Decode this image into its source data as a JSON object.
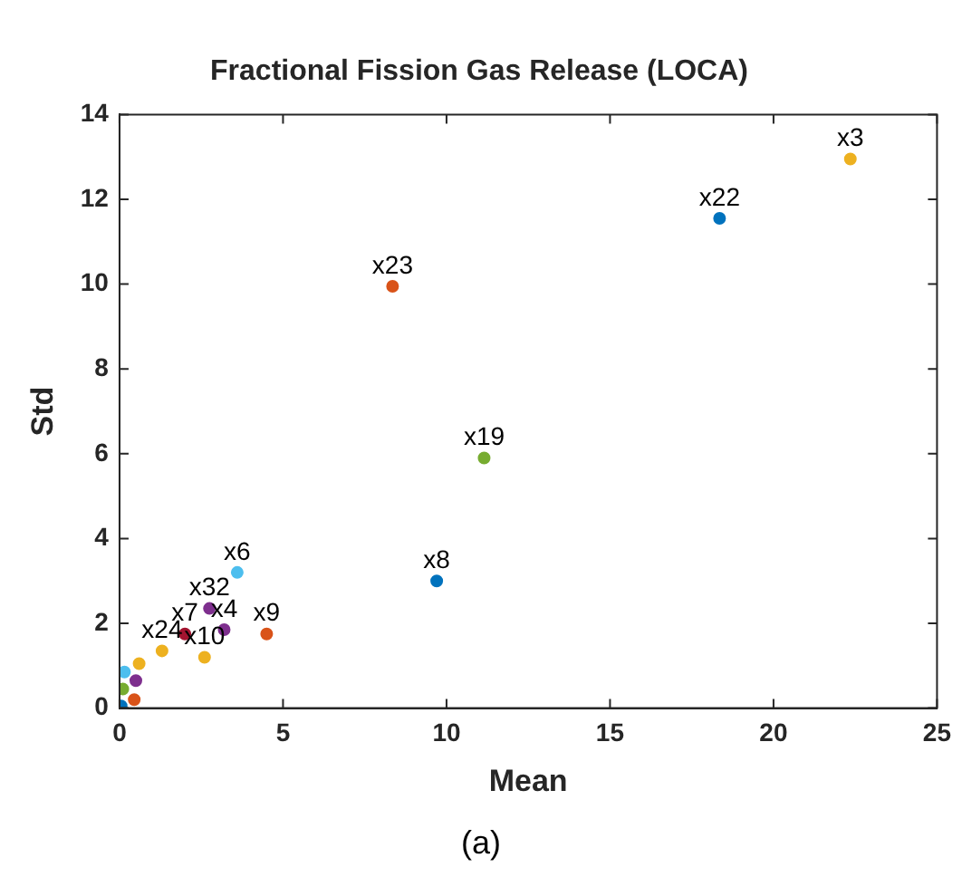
{
  "chart_data": {
    "type": "scatter",
    "title": "Fractional Fission Gas Release (LOCA)",
    "xlabel": "Mean",
    "ylabel": "Std",
    "xlim": [
      0,
      25
    ],
    "xticks": [
      0,
      5,
      10,
      15,
      20,
      25
    ],
    "ylim": [
      0,
      14
    ],
    "yticks": [
      0,
      2,
      4,
      6,
      8,
      10,
      12,
      14
    ],
    "grid": false,
    "legend": false,
    "marker": "circle",
    "x": [
      22.35,
      18.35,
      8.35,
      11.15,
      9.7,
      3.6,
      2.75,
      3.2,
      2.0,
      4.5,
      2.6,
      1.3,
      0.05,
      0.1,
      0.15,
      0.45,
      0.5,
      0.6
    ],
    "values": [
      12.95,
      11.55,
      9.95,
      5.9,
      3.0,
      3.2,
      2.35,
      1.85,
      1.75,
      1.75,
      1.2,
      1.35,
      0.05,
      0.45,
      0.85,
      0.2,
      0.65,
      1.05
    ],
    "colors": [
      "#edb120",
      "#0072bd",
      "#d95319",
      "#77ac30",
      "#0072bd",
      "#4dbeee",
      "#7e2f8e",
      "#7e2f8e",
      "#a2142f",
      "#d95319",
      "#edb120",
      "#edb120",
      "#0072bd",
      "#77ac30",
      "#4dbeee",
      "#d95319",
      "#7e2f8e",
      "#edb120"
    ],
    "annotations": [
      {
        "text": "x3",
        "x": 22.35,
        "y": 12.95
      },
      {
        "text": "x22",
        "x": 18.35,
        "y": 11.55
      },
      {
        "text": "x23",
        "x": 8.35,
        "y": 9.95
      },
      {
        "text": "x19",
        "x": 11.15,
        "y": 5.9
      },
      {
        "text": "x8",
        "x": 9.7,
        "y": 3.0
      },
      {
        "text": "x6",
        "x": 3.6,
        "y": 3.2
      },
      {
        "text": "x32",
        "x": 2.75,
        "y": 2.35
      },
      {
        "text": "x4",
        "x": 3.2,
        "y": 1.85
      },
      {
        "text": "x7",
        "x": 2.0,
        "y": 1.75
      },
      {
        "text": "x9",
        "x": 4.5,
        "y": 1.75
      },
      {
        "text": "x10",
        "x": 2.6,
        "y": 1.2
      },
      {
        "text": "x24",
        "x": 1.3,
        "y": 1.35
      },
      "(a)"
    ]
  }
}
